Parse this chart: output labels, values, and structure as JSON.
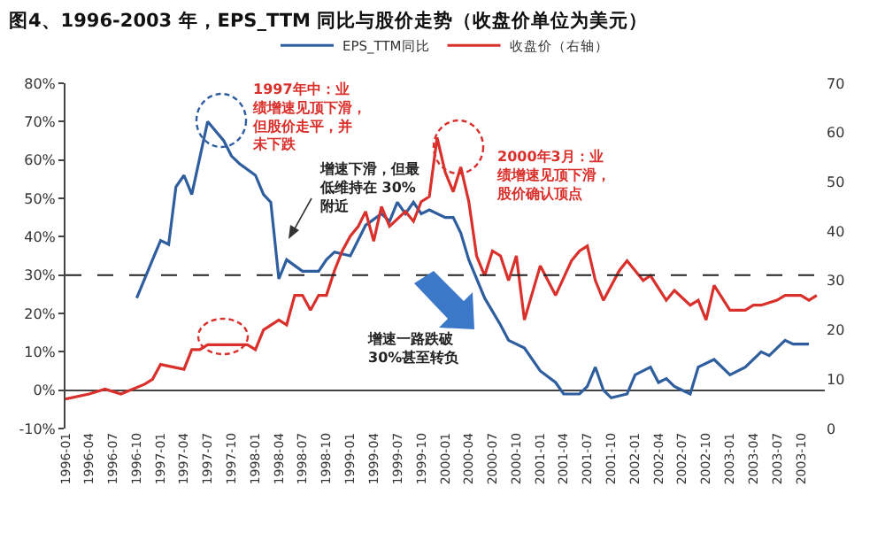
{
  "chart_data": {
    "type": "line",
    "title": "图4、1996-2003 年，EPS_TTM 同比与股价走势（收盘价单位为美元）",
    "xlim": [
      "1996-01",
      "2004-01"
    ],
    "xticks": [
      "1996-01",
      "1996-04",
      "1996-07",
      "1996-10",
      "1997-01",
      "1997-04",
      "1997-07",
      "1997-10",
      "1998-01",
      "1998-04",
      "1998-07",
      "1998-10",
      "1999-01",
      "1999-04",
      "1999-07",
      "1999-10",
      "2000-01",
      "2000-04",
      "2000-07",
      "2000-10",
      "2001-01",
      "2001-04",
      "2001-07",
      "2001-10",
      "2002-01",
      "2002-04",
      "2002-07",
      "2002-10",
      "2003-01",
      "2003-04",
      "2003-07",
      "2003-10"
    ],
    "ylim": [
      -10,
      80
    ],
    "yticks": [
      {
        "value": -10,
        "label": "-10%"
      },
      {
        "value": 0,
        "label": "0%"
      },
      {
        "value": 10,
        "label": "10%"
      },
      {
        "value": 20,
        "label": "20%"
      },
      {
        "value": 30,
        "label": "30%"
      },
      {
        "value": 40,
        "label": "40%"
      },
      {
        "value": 50,
        "label": "50%"
      },
      {
        "value": 60,
        "label": "60%"
      },
      {
        "value": 70,
        "label": "70%"
      },
      {
        "value": 80,
        "label": "80%"
      }
    ],
    "y2lim": [
      0,
      70
    ],
    "y2ticks": [
      0,
      10,
      20,
      30,
      40,
      50,
      60,
      70
    ],
    "grid": false,
    "legend": "top",
    "marker": "none",
    "line_style": "solid",
    "ref_lines": [
      {
        "axis": "y",
        "value": 30,
        "line_style": "dashed",
        "color": "#222222"
      }
    ],
    "annotations": [
      "1997年中：业绩增速见顶下滑，但股价走平，并未下跌",
      "增速下滑，但最低维持在 30%附近",
      "2000年3月：业绩增速见顶下滑，股价确认顶点",
      "增速一路跌破30%甚至转负"
    ],
    "series": [
      {
        "name": "EPS_TTM同比",
        "color": "#2e5e9e",
        "x": [
          "1996-10",
          "1996-12",
          "1997-01",
          "1997-02",
          "1997-03",
          "1997-04",
          "1997-05",
          "1997-07",
          "1997-09",
          "1997-10",
          "1997-11",
          "1998-01",
          "1998-02",
          "1998-03",
          "1998-04",
          "1998-05",
          "1998-07",
          "1998-09",
          "1998-10",
          "1998-11",
          "1999-01",
          "1999-03",
          "1999-05",
          "1999-06",
          "1999-07",
          "1999-08",
          "1999-09",
          "1999-10",
          "1999-11",
          "2000-01",
          "2000-02",
          "2000-03",
          "2000-04",
          "2000-06",
          "2000-08",
          "2000-09",
          "2000-11",
          "2001-01",
          "2001-03",
          "2001-04",
          "2001-06",
          "2001-07",
          "2001-08",
          "2001-09",
          "2001-10",
          "2001-12",
          "2002-01",
          "2002-03",
          "2002-04",
          "2002-05",
          "2002-06",
          "2002-08",
          "2002-09",
          "2002-11",
          "2003-01",
          "2003-03",
          "2003-05",
          "2003-06",
          "2003-08",
          "2003-09",
          "2003-11"
        ],
        "values": [
          24,
          34,
          39,
          38,
          53,
          56,
          51,
          70,
          65,
          61,
          59,
          56,
          51,
          49,
          29,
          34,
          31,
          31,
          34,
          36,
          35,
          43,
          46,
          44,
          49,
          46,
          49,
          46,
          47,
          45,
          45,
          41,
          34,
          24,
          17,
          13,
          11,
          5,
          2,
          -1,
          -1,
          1,
          6,
          0,
          -2,
          -1,
          4,
          6,
          2,
          3,
          1,
          -1,
          6,
          8,
          4,
          6,
          10,
          9,
          13,
          12,
          12
        ]
      },
      {
        "name": "收盘价（右轴）",
        "color": "#d9302c",
        "axis": "y2",
        "x": [
          "1996-01",
          "1996-04",
          "1996-06",
          "1996-08",
          "1996-11",
          "1996-12",
          "1997-01",
          "1997-04",
          "1997-05",
          "1997-06",
          "1997-07",
          "1997-09",
          "1997-10",
          "1997-12",
          "1998-01",
          "1998-02",
          "1998-04",
          "1998-05",
          "1998-06",
          "1998-07",
          "1998-08",
          "1998-09",
          "1998-10",
          "1998-11",
          "1998-12",
          "1999-01",
          "1999-02",
          "1999-03",
          "1999-04",
          "1999-05",
          "1999-06",
          "1999-08",
          "1999-09",
          "1999-10",
          "1999-11",
          "1999-12",
          "2000-01",
          "2000-02",
          "2000-03",
          "2000-04",
          "2000-05",
          "2000-06",
          "2000-07",
          "2000-08",
          "2000-09",
          "2000-10",
          "2000-11",
          "2001-01",
          "2001-03",
          "2001-05",
          "2001-06",
          "2001-07",
          "2001-08",
          "2001-09",
          "2001-11",
          "2001-12",
          "2002-02",
          "2002-03",
          "2002-05",
          "2002-06",
          "2002-08",
          "2002-09",
          "2002-10",
          "2002-11",
          "2003-01",
          "2003-03",
          "2003-04",
          "2003-05",
          "2003-07",
          "2003-08",
          "2003-10",
          "2003-11",
          "2003-12"
        ],
        "values": [
          6,
          7,
          8,
          7,
          9,
          10,
          13,
          12,
          16,
          16,
          17,
          17,
          17,
          17,
          16,
          20,
          22,
          21,
          27,
          27,
          24,
          27,
          27,
          32,
          36,
          39,
          41,
          44,
          38,
          45,
          41,
          44,
          42,
          46,
          47,
          59,
          52,
          48,
          53,
          46,
          35,
          31,
          36,
          35,
          30,
          35,
          22,
          33,
          27,
          34,
          36,
          37,
          30,
          26,
          32,
          34,
          30,
          31,
          26,
          28,
          25,
          26,
          22,
          29,
          24,
          24,
          25,
          25,
          26,
          27,
          27,
          26,
          27
        ]
      }
    ]
  }
}
